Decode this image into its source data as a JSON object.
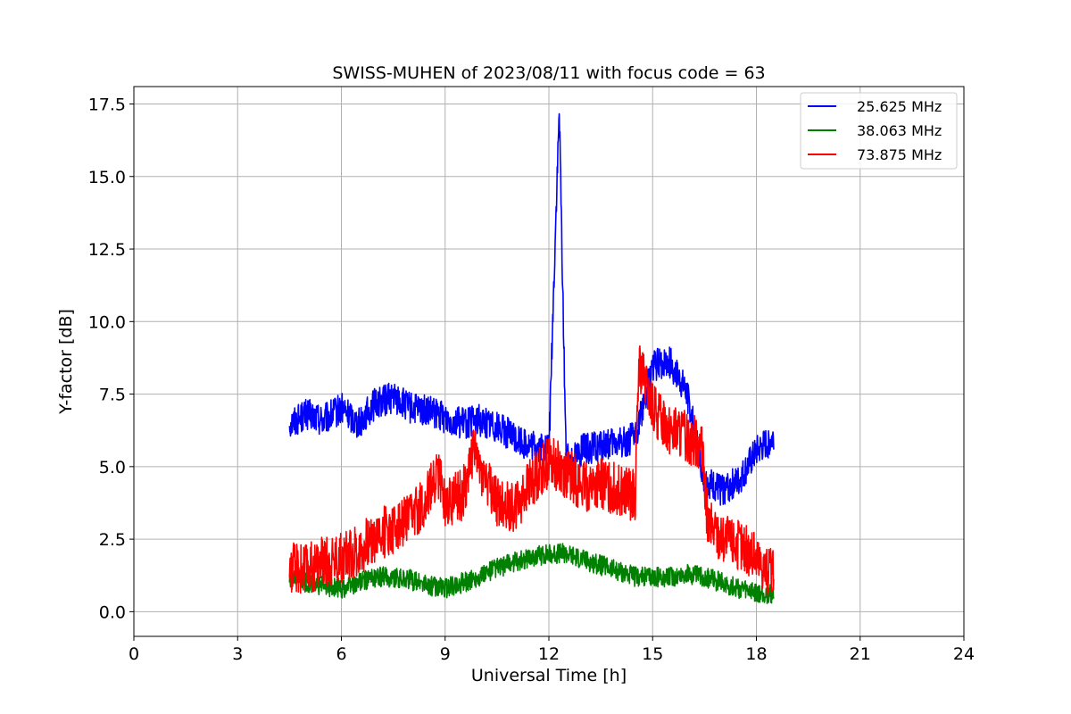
{
  "chart_data": {
    "type": "line",
    "title": "SWISS-MUHEN of 2023/08/11 with focus code = 63",
    "xlabel": "Universal Time [h]",
    "ylabel": "Y-factor [dB]",
    "xlim": [
      0,
      24
    ],
    "ylim": [
      -0.85,
      18.1
    ],
    "xticks": [
      0,
      3,
      6,
      9,
      12,
      15,
      18,
      21,
      24
    ],
    "xtick_labels": [
      "0",
      "3",
      "6",
      "9",
      "12",
      "15",
      "18",
      "21",
      "24"
    ],
    "yticks": [
      0,
      2.5,
      5,
      7.5,
      10,
      12.5,
      15,
      17.5
    ],
    "ytick_labels": [
      "0.0",
      "2.5",
      "5.0",
      "7.5",
      "10.0",
      "12.5",
      "15.0",
      "17.5"
    ],
    "grid": true,
    "legend_position": "top-right",
    "series": [
      {
        "name": "25.625 MHz",
        "color": "#0000ff",
        "x": [
          4.5,
          5.0,
          5.5,
          6.0,
          6.5,
          7.0,
          7.5,
          8.0,
          8.5,
          9.0,
          9.5,
          10.0,
          10.5,
          11.0,
          11.5,
          12.0,
          12.2,
          12.3,
          12.5,
          13.0,
          13.5,
          14.0,
          14.5,
          15.0,
          15.5,
          16.0,
          16.5,
          17.0,
          17.5,
          18.0,
          18.5
        ],
        "y": [
          6.5,
          6.8,
          6.6,
          7.0,
          6.5,
          7.2,
          7.4,
          7.0,
          6.9,
          6.7,
          6.5,
          6.6,
          6.4,
          6.0,
          5.7,
          5.6,
          13.5,
          17.2,
          5.2,
          5.6,
          5.7,
          5.8,
          6.0,
          8.5,
          8.6,
          7.5,
          4.5,
          4.2,
          4.5,
          5.5,
          6.0
        ]
      },
      {
        "name": "38.063 MHz",
        "color": "#008000",
        "x": [
          4.5,
          5.0,
          5.5,
          6.0,
          6.5,
          7.0,
          7.5,
          8.0,
          8.5,
          9.0,
          9.5,
          10.0,
          10.5,
          11.0,
          11.5,
          12.0,
          12.5,
          13.0,
          13.5,
          14.0,
          14.5,
          15.0,
          15.5,
          16.0,
          16.5,
          17.0,
          17.5,
          18.0,
          18.5
        ],
        "y": [
          1.1,
          1.0,
          0.9,
          0.8,
          1.0,
          1.2,
          1.2,
          1.1,
          0.9,
          0.8,
          1.0,
          1.2,
          1.5,
          1.7,
          1.9,
          2.0,
          2.0,
          1.8,
          1.6,
          1.4,
          1.2,
          1.2,
          1.2,
          1.3,
          1.2,
          1.0,
          0.8,
          0.6,
          0.6
        ]
      },
      {
        "name": "73.875 MHz",
        "color": "#ff0000",
        "x": [
          4.5,
          5.0,
          5.5,
          6.0,
          6.5,
          7.0,
          7.5,
          8.0,
          8.5,
          8.8,
          9.0,
          9.5,
          9.8,
          10.0,
          10.5,
          11.0,
          11.5,
          12.0,
          12.5,
          13.0,
          13.5,
          14.0,
          14.5,
          14.6,
          15.0,
          15.5,
          16.0,
          16.4,
          16.6,
          17.0,
          17.5,
          18.0,
          18.5
        ],
        "y": [
          1.5,
          1.5,
          1.7,
          1.9,
          2.1,
          2.6,
          2.9,
          3.2,
          4.0,
          4.8,
          3.8,
          4.0,
          5.5,
          5.0,
          3.8,
          3.6,
          4.5,
          5.2,
          4.8,
          4.3,
          4.4,
          4.2,
          4.0,
          8.5,
          7.0,
          6.3,
          6.0,
          5.8,
          3.0,
          2.5,
          2.3,
          1.8,
          1.2
        ]
      }
    ]
  }
}
